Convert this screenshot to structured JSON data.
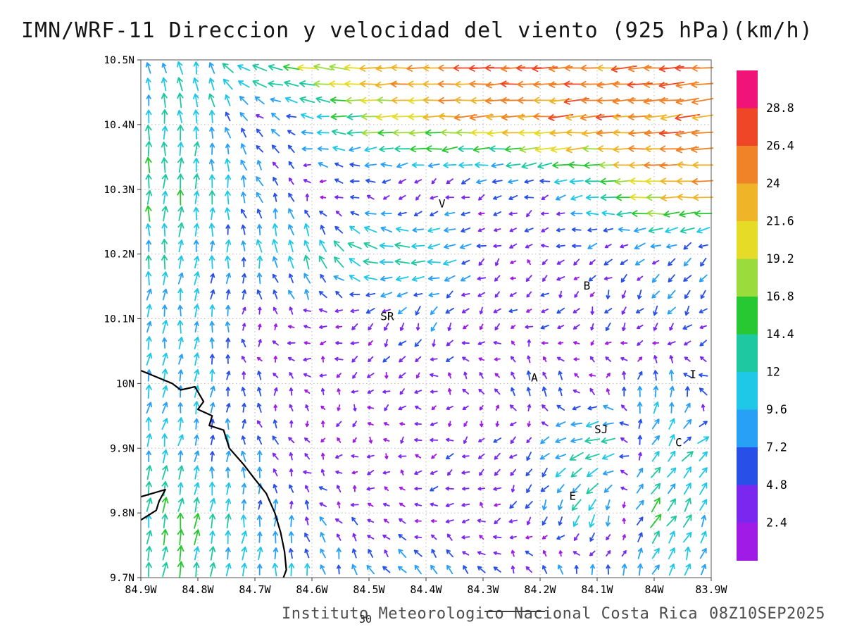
{
  "title": "IMN/WRF-11 Direccion y velocidad del viento (925 hPa)(km/h)",
  "footer": {
    "credit": "Instituto Meteorologico Nacional Costa Rica",
    "timestamp": "08Z10SEP2025",
    "contour_label": "30"
  },
  "chart_data": {
    "type": "vector_field",
    "title": "IMN/WRF-11 Direccion y velocidad del viento (925 hPa)(km/h)",
    "units": "km/h",
    "pressure_level": "925 hPa",
    "x_ticks": [
      "84.9W",
      "84.8W",
      "84.7W",
      "84.6W",
      "84.5W",
      "84.4W",
      "84.3W",
      "84.2W",
      "84.1W",
      "84W",
      "83.9W"
    ],
    "y_ticks": [
      "10.5N",
      "10.4N",
      "10.3N",
      "10.2N",
      "10.1N",
      "10N",
      "9.9N",
      "9.8N",
      "9.7N"
    ],
    "lon_range": [
      -84.9,
      -83.9
    ],
    "lat_range": [
      9.7,
      10.5
    ],
    "grid": "dotted",
    "colorbar": {
      "units": "km/h",
      "labels": [
        "2.4",
        "4.8",
        "7.2",
        "9.6",
        "12",
        "14.4",
        "16.8",
        "19.2",
        "21.6",
        "24",
        "26.4",
        "28.8"
      ],
      "levels": [
        2.4,
        4.8,
        7.2,
        9.6,
        12,
        14.4,
        16.8,
        19.2,
        21.6,
        24,
        26.4,
        28.8
      ],
      "colors_low_to_high": [
        "#a01ce6",
        "#7a28f0",
        "#2850e8",
        "#28a0f5",
        "#1ec8e6",
        "#1ec8a0",
        "#28c832",
        "#9bdc3c",
        "#e6dc28",
        "#f0b428",
        "#f08228",
        "#f04628",
        "#f01478"
      ]
    },
    "stations": [
      {
        "label": "V",
        "lon": -84.372,
        "lat": 10.272
      },
      {
        "label": "B",
        "lon": -84.118,
        "lat": 10.145
      },
      {
        "label": "SR",
        "lon": -84.468,
        "lat": 10.098
      },
      {
        "label": "A",
        "lon": -84.21,
        "lat": 10.003
      },
      {
        "label": "I",
        "lon": -83.932,
        "lat": 10.008
      },
      {
        "label": "SJ",
        "lon": -84.093,
        "lat": 9.923
      },
      {
        "label": "C",
        "lon": -83.957,
        "lat": 9.903
      },
      {
        "label": "E",
        "lon": -84.143,
        "lat": 9.82
      }
    ],
    "coastlines": [
      [
        [
          -84.9,
          10.02
        ],
        [
          -84.845,
          10.0
        ],
        [
          -84.83,
          9.99
        ],
        [
          -84.805,
          9.995
        ],
        [
          -84.79,
          9.972
        ],
        [
          -84.8,
          9.96
        ],
        [
          -84.775,
          9.95
        ],
        [
          -84.78,
          9.935
        ],
        [
          -84.755,
          9.928
        ],
        [
          -84.745,
          9.9
        ],
        [
          -84.72,
          9.875
        ],
        [
          -84.7,
          9.852
        ],
        [
          -84.68,
          9.83
        ],
        [
          -84.665,
          9.8
        ],
        [
          -84.655,
          9.77
        ],
        [
          -84.648,
          9.74
        ],
        [
          -84.645,
          9.712
        ],
        [
          -84.65,
          9.7
        ]
      ],
      [
        [
          -84.9,
          9.825
        ],
        [
          -84.857,
          9.836
        ],
        [
          -84.868,
          9.818
        ],
        [
          -84.873,
          9.804
        ],
        [
          -84.9,
          9.789
        ]
      ]
    ],
    "wind_field": {
      "note": "coarse control grid of wind components in km/h; u eastward, v northward; rows ordered by control_lats",
      "control_lons": [
        -84.9,
        -84.8,
        -84.7,
        -84.6,
        -84.5,
        -84.4,
        -84.3,
        -84.2,
        -84.1,
        -84.0,
        -83.9
      ],
      "control_lats": [
        10.5,
        10.4,
        10.3,
        10.2,
        10.1,
        10.0,
        9.9,
        9.8,
        9.7
      ],
      "u_kmh": [
        [
          -3,
          -2,
          -14,
          -19,
          -23,
          -25,
          -26,
          -26,
          -26,
          -26,
          -26
        ],
        [
          -1,
          0,
          -4,
          -9,
          -17,
          -20,
          -23,
          -24,
          -25,
          -25,
          -25
        ],
        [
          0,
          1,
          -3,
          -2,
          -3,
          -1,
          -3,
          -5,
          -14,
          -23,
          -24
        ],
        [
          1,
          1,
          -1,
          -3,
          -14,
          -15,
          -4,
          -2,
          -3,
          -5,
          -4
        ],
        [
          1,
          1,
          -1,
          -3,
          -4,
          -2,
          -2,
          -3,
          -2,
          -3,
          -5
        ],
        [
          2,
          2,
          0,
          -2,
          -1,
          -3,
          -1,
          0,
          -2,
          2,
          -6
        ],
        [
          2,
          2,
          -2,
          -2,
          -1,
          -3,
          -2,
          -4,
          -16,
          6,
          10
        ],
        [
          2,
          2,
          1,
          -3,
          -2,
          -3,
          -2,
          -3,
          -6,
          10,
          3
        ],
        [
          2,
          2,
          1,
          0,
          -4,
          -5,
          -4,
          -2,
          1,
          3,
          2
        ]
      ],
      "v_kmh": [
        [
          5,
          12,
          4,
          2,
          0,
          -1,
          -1,
          -1,
          -2,
          -2,
          -2
        ],
        [
          13,
          13,
          4,
          2,
          -1,
          -1,
          -2,
          -2,
          -2,
          -3,
          -3
        ],
        [
          14,
          13,
          6,
          1,
          0,
          -2,
          -1,
          -2,
          0,
          1,
          0
        ],
        [
          11,
          10,
          9,
          13,
          4,
          -1,
          -2,
          -1,
          -2,
          -3,
          -4
        ],
        [
          10,
          10,
          2,
          1,
          -3,
          -5,
          -2,
          -2,
          -4,
          -5,
          -4
        ],
        [
          10,
          9,
          4,
          1,
          -1,
          -1,
          3,
          6,
          2,
          10,
          2
        ],
        [
          10,
          9,
          7,
          0,
          -1,
          -1,
          -2,
          -4,
          -5,
          9,
          4
        ],
        [
          13,
          13,
          9,
          5,
          1,
          0,
          -1,
          -6,
          -13,
          12,
          10
        ],
        [
          14,
          14,
          10,
          9,
          7,
          6,
          5,
          6,
          8,
          8,
          10
        ]
      ],
      "arrow_cols": 36,
      "arrow_rows": 32,
      "jitter_kmh": 4.5
    }
  }
}
